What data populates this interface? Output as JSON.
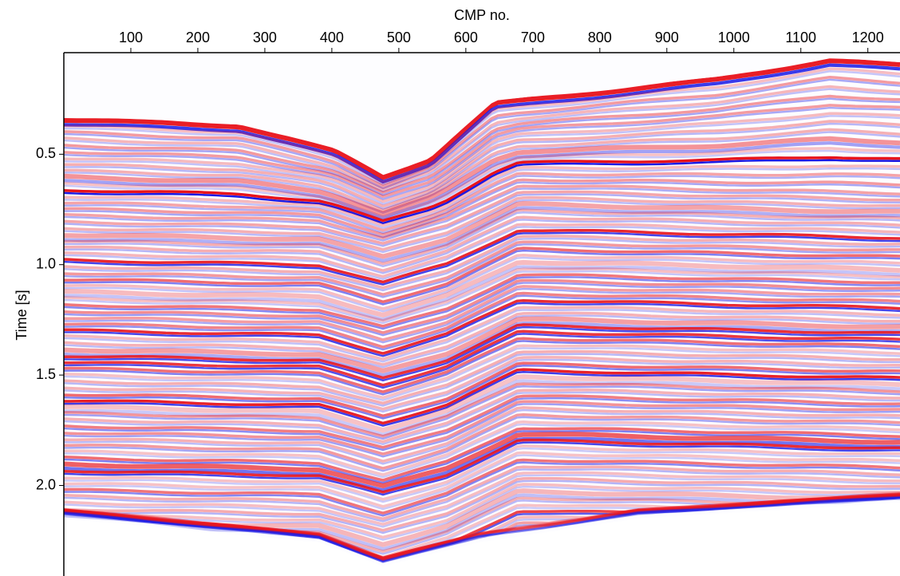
{
  "chart_data": {
    "type": "seismic-section",
    "x_label": "CMP no.",
    "y_label": "Time [s]",
    "x_axis_position": "top",
    "y_inverted": true,
    "xlim": [
      0,
      1248
    ],
    "xticks": [
      100,
      200,
      300,
      400,
      500,
      600,
      700,
      800,
      900,
      1000,
      1100,
      1200
    ],
    "ylim": [
      0.04,
      2.41
    ],
    "yticks": [
      0.5,
      {
        "value": 1,
        "label": "1.0"
      },
      1.5,
      {
        "value": 2,
        "label": "2.0"
      }
    ],
    "colors": [
      "#e8141c",
      "#1a1ae6"
    ]
  }
}
